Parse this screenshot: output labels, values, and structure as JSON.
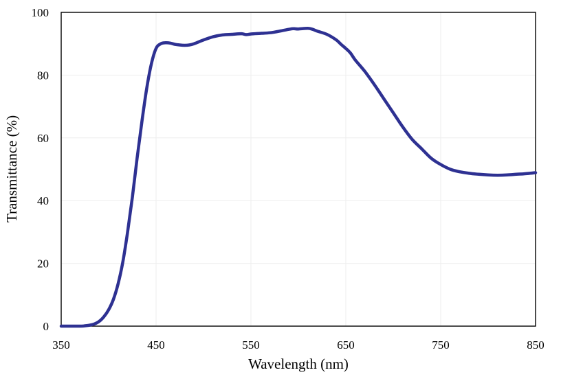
{
  "chart_data": {
    "type": "line",
    "title": "",
    "xlabel": "Wavelength  (nm)",
    "ylabel": "Transmittance  (%)",
    "xlim": [
      350,
      850
    ],
    "ylim": [
      0,
      100
    ],
    "x_ticks": [
      350,
      450,
      550,
      650,
      750,
      850
    ],
    "y_ticks": [
      0,
      20,
      40,
      60,
      80,
      100
    ],
    "grid": true,
    "legend": "none",
    "colors": {
      "line": "#2e3192",
      "grid": "#eeeeee",
      "axis": "#000000"
    },
    "series": [
      {
        "x": [
          350,
          370,
          375,
          380,
          385,
          390,
          395,
          400,
          405,
          410,
          415,
          420,
          425,
          430,
          435,
          440,
          445,
          450,
          455,
          460,
          465,
          470,
          475,
          480,
          485,
          490,
          495,
          500,
          510,
          520,
          530,
          540,
          545,
          550,
          560,
          570,
          580,
          590,
          595,
          600,
          610,
          615,
          620,
          630,
          640,
          645,
          650,
          655,
          660,
          670,
          680,
          690,
          700,
          710,
          720,
          730,
          740,
          750,
          760,
          770,
          780,
          790,
          800,
          810,
          820,
          830,
          840,
          850
        ],
        "y": [
          0,
          0,
          0.1,
          0.3,
          0.7,
          1.5,
          3.0,
          5.2,
          8.5,
          13.5,
          20.5,
          30.0,
          41.0,
          53.5,
          65.0,
          75.5,
          83.5,
          88.5,
          90.0,
          90.3,
          90.2,
          89.8,
          89.6,
          89.5,
          89.6,
          90.0,
          90.6,
          91.2,
          92.2,
          92.8,
          93.0,
          93.2,
          92.9,
          93.1,
          93.3,
          93.5,
          94.0,
          94.6,
          94.8,
          94.7,
          94.9,
          94.6,
          94.0,
          93.0,
          91.2,
          89.8,
          88.5,
          87.0,
          84.8,
          81.2,
          77.0,
          72.5,
          68.0,
          63.5,
          59.5,
          56.5,
          53.5,
          51.5,
          50.0,
          49.2,
          48.7,
          48.4,
          48.2,
          48.1,
          48.2,
          48.4,
          48.6,
          48.9
        ]
      }
    ]
  }
}
